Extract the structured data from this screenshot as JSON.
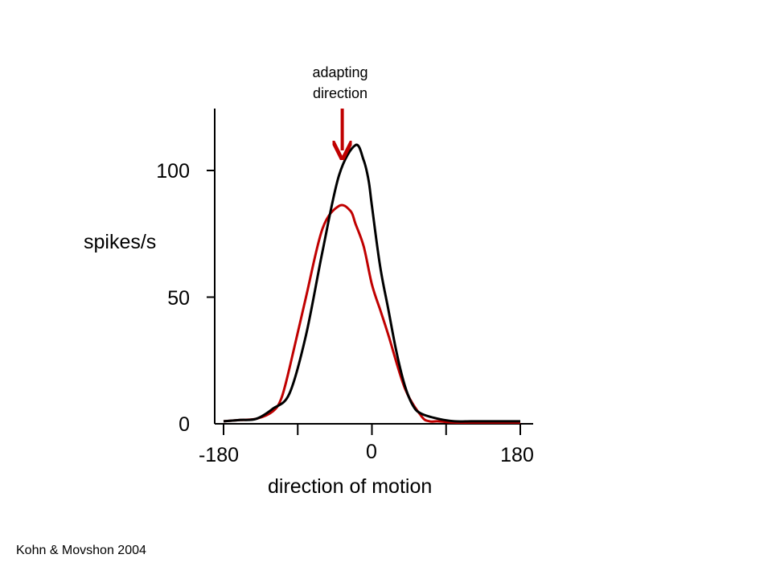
{
  "chart_data": {
    "type": "line",
    "title": "",
    "xlabel": "direction of motion",
    "ylabel": "spikes/s",
    "xlim": [
      -180,
      180
    ],
    "ylim": [
      0,
      125
    ],
    "xticks": [
      -180,
      -90,
      0,
      90,
      180
    ],
    "xtick_labels": [
      "-180",
      "0",
      "180"
    ],
    "yticks": [
      0,
      50,
      100
    ],
    "ytick_labels": [
      "0",
      "50",
      "100"
    ],
    "grid": false,
    "legend": "none",
    "series": [
      {
        "color": "#000000",
        "x": [
          -180,
          -160,
          -140,
          -120,
          -100,
          -80,
          -60,
          -40,
          -20,
          -10,
          -4,
          0,
          10,
          20,
          30,
          40,
          50,
          60,
          80,
          100,
          120,
          140,
          160,
          180
        ],
        "y": [
          1,
          1.5,
          2,
          6,
          12,
          35,
          68,
          98,
          110,
          104,
          96,
          86,
          62,
          45,
          28,
          15,
          7,
          4,
          2,
          1,
          1,
          1,
          1,
          1
        ]
      },
      {
        "color": "#c00000",
        "x": [
          -180,
          -160,
          -140,
          -120,
          -110,
          -100,
          -80,
          -60,
          -40,
          -26,
          -20,
          -10,
          0,
          10,
          20,
          40,
          60,
          70,
          80,
          100,
          120,
          140,
          160,
          180
        ],
        "y": [
          1,
          1.5,
          2,
          5,
          10,
          22,
          50,
          77,
          86,
          84,
          79,
          70,
          55,
          45,
          35,
          14,
          3,
          1,
          1,
          0.5,
          0.5,
          0.5,
          0.5,
          0.5
        ]
      }
    ],
    "annotations": [
      {
        "text_line1": "adapting",
        "text_line2": "direction",
        "x": -36,
        "color": "#c00000"
      }
    ]
  },
  "credit": "Kohn & Movshon 2004"
}
